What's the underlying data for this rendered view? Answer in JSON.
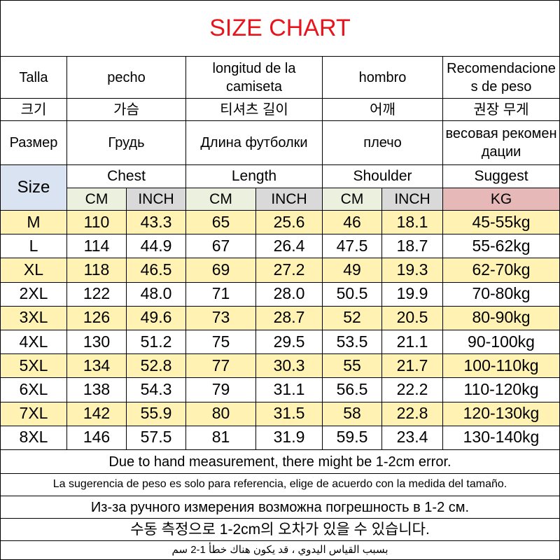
{
  "title": "SIZE CHART",
  "header": {
    "rows": [
      [
        "Talla",
        "pecho",
        "longitud de la camiseta",
        "hombro",
        "Recomendaciones de peso"
      ],
      [
        "크기",
        "가슴",
        "티셔츠 길이",
        "어깨",
        "권장 무게"
      ],
      [
        "Размер",
        "Грудь",
        "Длина футболки",
        "плечо",
        "весовая рекомендации"
      ]
    ]
  },
  "groups": [
    "Size",
    "Chest",
    "Length",
    "Shoulder",
    "Suggest"
  ],
  "units": [
    "CM",
    "INCH",
    "CM",
    "INCH",
    "CM",
    "INCH",
    "KG"
  ],
  "table": {
    "rows": [
      [
        "M",
        "110",
        "43.3",
        "65",
        "25.6",
        "46",
        "18.1",
        "45-55kg"
      ],
      [
        "L",
        "114",
        "44.9",
        "67",
        "26.4",
        "47.5",
        "18.7",
        "55-62kg"
      ],
      [
        "XL",
        "118",
        "46.5",
        "69",
        "27.2",
        "49",
        "19.3",
        "62-70kg"
      ],
      [
        "2XL",
        "122",
        "48.0",
        "71",
        "28.0",
        "50.5",
        "19.9",
        "70-80kg"
      ],
      [
        "3XL",
        "126",
        "49.6",
        "73",
        "28.7",
        "52",
        "20.5",
        "80-90kg"
      ],
      [
        "4XL",
        "130",
        "51.2",
        "75",
        "29.5",
        "53.5",
        "21.1",
        "90-100kg"
      ],
      [
        "5XL",
        "134",
        "52.8",
        "77",
        "30.3",
        "55",
        "21.7",
        "100-110kg"
      ],
      [
        "6XL",
        "138",
        "54.3",
        "79",
        "31.1",
        "56.5",
        "22.2",
        "110-120kg"
      ],
      [
        "7XL",
        "142",
        "55.9",
        "80",
        "31.5",
        "58",
        "22.8",
        "120-130kg"
      ],
      [
        "8XL",
        "146",
        "57.5",
        "81",
        "31.9",
        "59.5",
        "23.4",
        "130-140kg"
      ]
    ]
  },
  "notes": [
    "Due to hand measurement, there might be 1-2cm error.",
    "La sugerencia de peso es solo para referencia, elige de acuerdo con la medida del tamaño.",
    "Из-за ручного измерения возможна погрешность в 1-2 см.",
    "수동 측정으로 1-2cm의 오차가 있을 수 있습니다.",
    "بسبب القياس اليدوي ، قد يكون هناك خطأ 1-2 سم"
  ]
}
